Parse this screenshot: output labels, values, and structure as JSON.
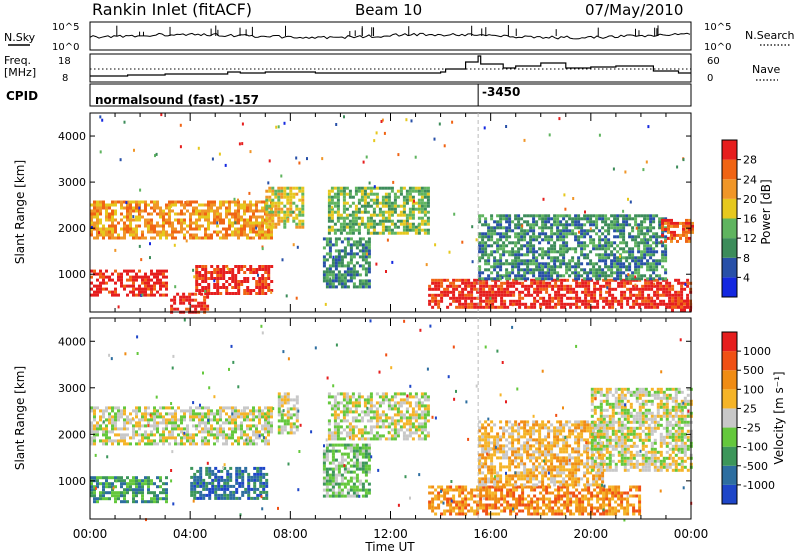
{
  "header": {
    "station": "Rankin Inlet (fitACF)",
    "beam": "Beam 10",
    "date": "07/May/2010"
  },
  "noise_panel": {
    "left_label": "N.Sky",
    "left_ticks": [
      "10^5",
      "10^0"
    ],
    "right_label": "N.Search",
    "right_ticks": [
      "10^5",
      "10^0"
    ]
  },
  "freq_panel": {
    "left_label_1": "Freq.",
    "left_label_2": "[MHz]",
    "left_ticks": [
      "18",
      "8"
    ],
    "right_label": "Nave",
    "right_ticks": [
      "60",
      "0"
    ]
  },
  "cpid_panel": {
    "label": "CPID",
    "program_1": "normalsound (fast) -157",
    "program_2": "-3450"
  },
  "power_panel": {
    "ylabel": "Slant Range [km]",
    "yticks": [
      "4000",
      "3000",
      "2000",
      "1000"
    ],
    "colorbar_label": "Power [dB]",
    "colorbar_ticks": [
      "28",
      "24",
      "20",
      "16",
      "12",
      "8",
      "4"
    ],
    "colors": [
      "#1428e0",
      "#2850a8",
      "#3c8c5a",
      "#5fb45f",
      "#e6c81e",
      "#f09628",
      "#f06414",
      "#e61e1e"
    ]
  },
  "velocity_panel": {
    "ylabel": "Slant Range [km]",
    "yticks": [
      "4000",
      "3000",
      "2000",
      "1000"
    ],
    "colorbar_label": "Velocity [m s⁻¹]",
    "colorbar_ticks": [
      "1000",
      "500",
      "100",
      "25",
      "-25",
      "-100",
      "-500",
      "-1000"
    ],
    "colors": [
      "#1e46c8",
      "#2d6ea0",
      "#3c965a",
      "#64c83c",
      "#c8c8c8",
      "#f5b428",
      "#f08c14",
      "#f05014",
      "#e61e1e"
    ]
  },
  "x_axis": {
    "ticks": [
      "00:00",
      "04:00",
      "08:00",
      "12:00",
      "16:00",
      "20:00",
      "00:00"
    ],
    "label": "Time UT"
  },
  "chart_data": {
    "type": "heatmap",
    "title": "Rankin Inlet (fitACF)",
    "x_range_hours": [
      0,
      24
    ],
    "y_range_km": [
      180,
      4500
    ],
    "cpid_change_hours": 15.5,
    "series": [
      {
        "name": "Power [dB]",
        "range": [
          0,
          32
        ]
      },
      {
        "name": "Velocity [m s⁻¹]",
        "range": [
          -1000,
          1000
        ]
      }
    ],
    "power_regions": [
      {
        "t0": 0.0,
        "t1": 7.3,
        "r0": 1800,
        "r1": 2600,
        "level": 5
      },
      {
        "t0": 0.0,
        "t1": 3.0,
        "r0": 550,
        "r1": 1100,
        "level": 7
      },
      {
        "t0": 4.2,
        "t1": 7.3,
        "r0": 600,
        "r1": 1200,
        "level": 7
      },
      {
        "t0": 3.2,
        "t1": 4.7,
        "r0": 200,
        "r1": 600,
        "level": 7
      },
      {
        "t0": 7.0,
        "t1": 8.5,
        "r0": 2000,
        "r1": 2900,
        "level": 4
      },
      {
        "t0": 9.5,
        "t1": 13.5,
        "r0": 1900,
        "r1": 2900,
        "level": 3
      },
      {
        "t0": 9.3,
        "t1": 11.2,
        "r0": 700,
        "r1": 1800,
        "level": 2
      },
      {
        "t0": 13.5,
        "t1": 24.0,
        "r0": 300,
        "r1": 900,
        "level": 7
      },
      {
        "t0": 15.5,
        "t1": 23.0,
        "r0": 900,
        "r1": 2300,
        "level": 2
      },
      {
        "t0": 22.8,
        "t1": 24.0,
        "r0": 1700,
        "r1": 2200,
        "level": 6
      },
      {
        "t0": 23.2,
        "t1": 24.0,
        "r0": 200,
        "r1": 450,
        "level": 7
      }
    ],
    "velocity_regions": [
      {
        "t0": 0.0,
        "t1": 7.3,
        "r0": 1800,
        "r1": 2600,
        "level": 4
      },
      {
        "t0": 0.0,
        "t1": 3.0,
        "r0": 550,
        "r1": 1100,
        "level": 2
      },
      {
        "t0": 4.0,
        "t1": 7.0,
        "r0": 600,
        "r1": 1300,
        "level": 1
      },
      {
        "t0": 7.5,
        "t1": 8.3,
        "r0": 2000,
        "r1": 2900,
        "level": 4
      },
      {
        "t0": 9.5,
        "t1": 13.5,
        "r0": 1900,
        "r1": 2900,
        "level": 4
      },
      {
        "t0": 9.3,
        "t1": 11.2,
        "r0": 700,
        "r1": 1800,
        "level": 3
      },
      {
        "t0": 13.5,
        "t1": 22.0,
        "r0": 300,
        "r1": 900,
        "level": 6
      },
      {
        "t0": 15.5,
        "t1": 20.5,
        "r0": 900,
        "r1": 2300,
        "level": 5
      },
      {
        "t0": 20.0,
        "t1": 24.0,
        "r0": 1200,
        "r1": 3000,
        "level": 4
      }
    ]
  }
}
